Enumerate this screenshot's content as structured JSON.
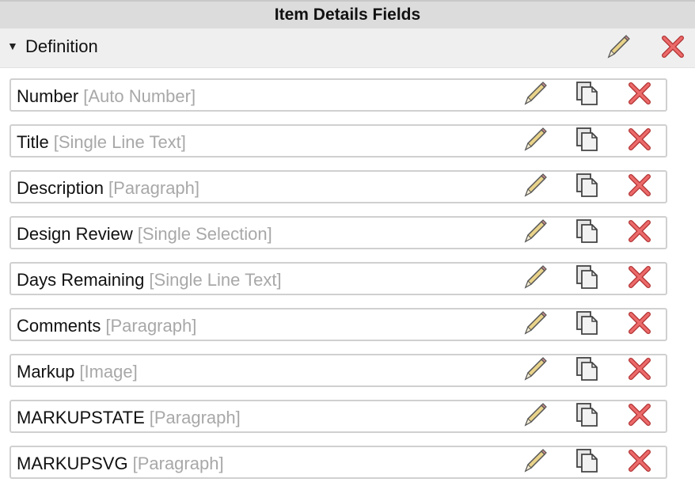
{
  "header": {
    "title": "Item Details Fields"
  },
  "section": {
    "label": "Definition",
    "expanded": true,
    "icons": [
      "pencil-icon",
      "x-icon"
    ]
  },
  "fields": [
    {
      "name": "Number",
      "type": "[Auto Number]"
    },
    {
      "name": "Title",
      "type": "[Single Line Text]"
    },
    {
      "name": "Description",
      "type": "[Paragraph]"
    },
    {
      "name": "Design Review",
      "type": "[Single Selection]"
    },
    {
      "name": "Days Remaining",
      "type": "[Single Line Text]"
    },
    {
      "name": "Comments",
      "type": "[Paragraph]"
    },
    {
      "name": "Markup",
      "type": "[Image]"
    },
    {
      "name": "MARKUPSTATE",
      "type": "[Paragraph]"
    },
    {
      "name": "MARKUPSVG",
      "type": "[Paragraph]"
    }
  ],
  "row_icons": [
    "pencil-icon",
    "copy-icon",
    "x-icon"
  ],
  "colors": {
    "header_bg": "#dcdcdc",
    "section_bg": "#efefef",
    "type_text": "#a8a8a8",
    "delete_red": "#e04848"
  }
}
